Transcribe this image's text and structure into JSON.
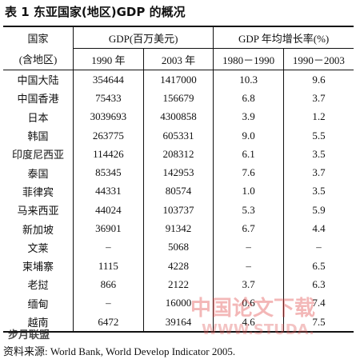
{
  "title": "表 1  东亚国家(地区)GDP 的概况",
  "table": {
    "header": {
      "country": "国家",
      "country_sub": "(含地区)",
      "gdp": "GDP(百万美元)",
      "growth": "GDP 年均增长率(%)",
      "sub": [
        "1990 年",
        "2003 年",
        "1980－1990",
        "1990－2003"
      ]
    },
    "rows": [
      [
        "中国大陆",
        "354644",
        "1417000",
        "10.3",
        "9.6"
      ],
      [
        "中国香港",
        "75433",
        "156679",
        "6.8",
        "3.7"
      ],
      [
        "日本",
        "3039693",
        "4300858",
        "3.9",
        "1.2"
      ],
      [
        "韩国",
        "263775",
        "605331",
        "9.0",
        "5.5"
      ],
      [
        "印度尼西亚",
        "114426",
        "208312",
        "6.1",
        "3.5"
      ],
      [
        "泰国",
        "85345",
        "142953",
        "7.6",
        "3.7"
      ],
      [
        "菲律宾",
        "44331",
        "80574",
        "1.0",
        "3.5"
      ],
      [
        "马来西亚",
        "44024",
        "103737",
        "5.3",
        "5.9"
      ],
      [
        "新加坡",
        "36901",
        "91342",
        "6.7",
        "4.4"
      ],
      [
        "文莱",
        "–",
        "5068",
        "–",
        "–"
      ],
      [
        "柬埔寨",
        "1115",
        "4228",
        "–",
        "6.5"
      ],
      [
        "老挝",
        "866",
        "2122",
        "3.7",
        "6.3"
      ],
      [
        "缅甸",
        "–",
        "16000",
        "0.6",
        "7.4"
      ],
      [
        "越南",
        "6472",
        "39164",
        "4.6",
        "7.5"
      ]
    ]
  },
  "source": "资料来源: World Bank, World Develop Indicator 2005.",
  "watermarks": [
    "中国论文下载",
    "WWW.STUDA.",
    "步月联盟"
  ]
}
